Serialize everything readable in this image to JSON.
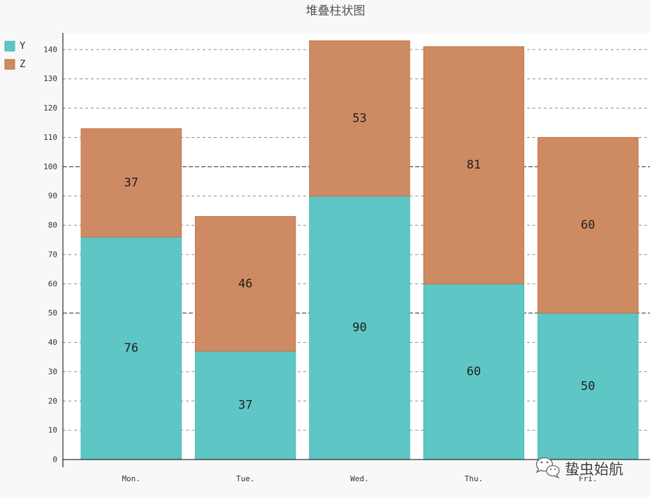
{
  "watermark": {
    "icon": "wechat-icon",
    "text": "蛰虫始航"
  },
  "chart_data": {
    "type": "bar",
    "stacked": true,
    "title": "堆叠柱状图",
    "categories": [
      "Mon.",
      "Tue.",
      "Wed.",
      "Thu.",
      "Fri."
    ],
    "series": [
      {
        "name": "Y",
        "values": [
          76,
          37,
          90,
          60,
          50
        ],
        "color": "#5ec6c5",
        "stroke": "#44b6b4"
      },
      {
        "name": "Z",
        "values": [
          37,
          46,
          53,
          81,
          60
        ],
        "color": "#ce8b63",
        "stroke": "#bf7346"
      }
    ],
    "ylim": [
      0,
      145.7
    ],
    "yticks": [
      0,
      10,
      20,
      30,
      40,
      50,
      60,
      70,
      80,
      90,
      100,
      110,
      120,
      130,
      140
    ],
    "major_gridlines": [
      50,
      100
    ],
    "grid": true,
    "legend_position": "top-left",
    "data_labels": true,
    "colors": {
      "background": "#f8f8f8",
      "plot_background": "#ffffff",
      "grid": "#8c8c8c",
      "grid_major": "#2b2b2b",
      "axis": "#000000"
    }
  }
}
